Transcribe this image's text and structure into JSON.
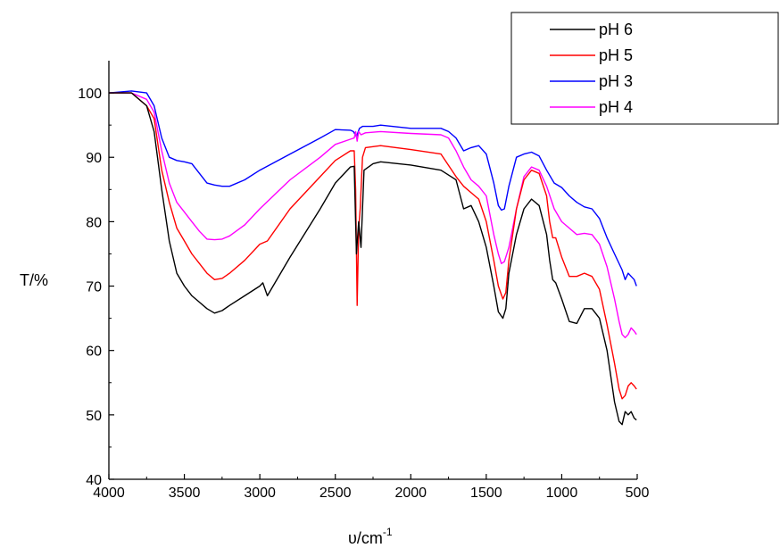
{
  "chart_data": {
    "type": "line",
    "xlabel": "υ/cm",
    "xlabel_sup": "-1",
    "ylabel": "T/%",
    "xlim": [
      4000,
      500
    ],
    "ylim": [
      40,
      105
    ],
    "x_ticks": [
      4000,
      3500,
      3000,
      2500,
      2000,
      1500,
      1000,
      500
    ],
    "x_tick_labels": [
      "4000",
      "3500",
      "3000",
      "2500",
      "2000",
      "1500",
      "1000",
      "500"
    ],
    "y_ticks": [
      40,
      50,
      60,
      70,
      80,
      90,
      100
    ],
    "y_tick_labels": [
      "40",
      "50",
      "60",
      "70",
      "80",
      "90",
      "100"
    ],
    "grid": false,
    "legend_position": "top-right",
    "series": [
      {
        "name": "pH 6",
        "color": "#000000",
        "x": [
          4000,
          3850,
          3750,
          3700,
          3650,
          3600,
          3550,
          3500,
          3450,
          3400,
          3350,
          3300,
          3250,
          3200,
          3100,
          3000,
          2980,
          2950,
          2800,
          2600,
          2500,
          2400,
          2375,
          2360,
          2345,
          2330,
          2310,
          2250,
          2200,
          2000,
          1800,
          1700,
          1650,
          1600,
          1550,
          1500,
          1450,
          1420,
          1390,
          1370,
          1350,
          1300,
          1250,
          1200,
          1150,
          1100,
          1080,
          1060,
          1040,
          1000,
          950,
          900,
          850,
          800,
          750,
          700,
          650,
          620,
          600,
          580,
          560,
          540,
          520,
          505
        ],
        "y": [
          100,
          100,
          98,
          94,
          85,
          77,
          72,
          70,
          68.5,
          67.5,
          66.5,
          65.8,
          66.2,
          67,
          68.5,
          70,
          70.5,
          68.5,
          74.5,
          82,
          86,
          88.5,
          88.6,
          75,
          80,
          76,
          88,
          89,
          89.3,
          88.8,
          88,
          86.5,
          82,
          82.5,
          80,
          76,
          70,
          66,
          65,
          66.5,
          72,
          78,
          82,
          83.5,
          82.5,
          78,
          74,
          71,
          70.5,
          68,
          64.5,
          64.2,
          66.5,
          66.5,
          65,
          60,
          52,
          49,
          48.5,
          50.5,
          50,
          50.5,
          49.5,
          49.2
        ]
      },
      {
        "name": "pH 5",
        "color": "#ff0000",
        "x": [
          4000,
          3850,
          3750,
          3700,
          3650,
          3600,
          3550,
          3500,
          3450,
          3400,
          3350,
          3300,
          3250,
          3200,
          3100,
          3000,
          2950,
          2800,
          2600,
          2500,
          2400,
          2375,
          2365,
          2355,
          2345,
          2335,
          2320,
          2300,
          2200,
          2000,
          1800,
          1700,
          1650,
          1600,
          1550,
          1500,
          1450,
          1420,
          1390,
          1370,
          1350,
          1300,
          1250,
          1200,
          1150,
          1100,
          1080,
          1060,
          1040,
          1000,
          950,
          900,
          850,
          800,
          750,
          700,
          650,
          620,
          600,
          580,
          560,
          540,
          520,
          505
        ],
        "y": [
          100,
          100,
          98,
          96,
          88,
          83,
          79,
          77,
          75,
          73.5,
          72,
          71,
          71.2,
          72,
          74,
          76.5,
          77,
          82,
          87,
          89.5,
          91,
          91,
          85,
          67,
          79,
          82,
          90,
          91.5,
          91.8,
          91.2,
          90.5,
          87,
          85.5,
          84.5,
          83.5,
          80,
          74,
          70,
          68,
          69,
          74,
          82,
          86.5,
          88,
          87.5,
          84,
          80,
          77.5,
          77.5,
          74.5,
          71.5,
          71.5,
          72,
          71.5,
          69.5,
          64,
          58,
          54,
          52.5,
          53,
          54.5,
          55,
          54.5,
          54
        ]
      },
      {
        "name": "pH 3",
        "color": "#0000ff",
        "x": [
          4000,
          3850,
          3750,
          3700,
          3650,
          3600,
          3550,
          3500,
          3450,
          3400,
          3350,
          3300,
          3250,
          3200,
          3100,
          3000,
          2800,
          2600,
          2500,
          2400,
          2380,
          2360,
          2340,
          2320,
          2250,
          2200,
          2000,
          1800,
          1750,
          1700,
          1650,
          1600,
          1550,
          1500,
          1450,
          1420,
          1400,
          1380,
          1350,
          1300,
          1250,
          1200,
          1150,
          1100,
          1050,
          1000,
          950,
          900,
          850,
          800,
          750,
          700,
          650,
          600,
          580,
          560,
          540,
          520,
          505
        ],
        "y": [
          100,
          100.3,
          100,
          98,
          93,
          90,
          89.5,
          89.3,
          89,
          87.5,
          86,
          85.7,
          85.5,
          85.5,
          86.5,
          88,
          90.5,
          93,
          94.3,
          94.2,
          94,
          93.2,
          94.5,
          94.8,
          94.8,
          95,
          94.5,
          94.5,
          94,
          93,
          91,
          91.5,
          91.8,
          90.5,
          86,
          82.5,
          81.8,
          82,
          85.5,
          90,
          90.5,
          90.8,
          90.2,
          88,
          86,
          85.3,
          84,
          83,
          82.3,
          82,
          80.5,
          77.5,
          75,
          72.5,
          71,
          72,
          71.5,
          71,
          70
        ]
      },
      {
        "name": "pH 4",
        "color": "#ff00ff",
        "x": [
          4000,
          3850,
          3750,
          3700,
          3650,
          3600,
          3550,
          3500,
          3450,
          3400,
          3350,
          3300,
          3250,
          3200,
          3100,
          3000,
          2800,
          2600,
          2500,
          2400,
          2375,
          2365,
          2355,
          2345,
          2330,
          2300,
          2200,
          2000,
          1800,
          1750,
          1700,
          1650,
          1600,
          1550,
          1500,
          1450,
          1420,
          1400,
          1380,
          1350,
          1300,
          1250,
          1200,
          1150,
          1100,
          1050,
          1000,
          950,
          900,
          850,
          800,
          750,
          700,
          650,
          620,
          600,
          580,
          560,
          540,
          520,
          505
        ],
        "y": [
          100,
          100,
          99,
          97,
          91,
          86,
          83,
          81.5,
          80,
          78.5,
          77.3,
          77.2,
          77.3,
          77.8,
          79.5,
          82,
          86.5,
          90,
          92,
          92.8,
          93,
          94,
          92.5,
          94,
          93.5,
          93.8,
          94,
          93.7,
          93.5,
          93,
          91,
          88.5,
          86.5,
          85.5,
          84,
          78,
          75,
          73.5,
          73.8,
          76,
          82,
          87,
          88.5,
          88,
          85.5,
          82,
          80,
          79,
          78,
          78.2,
          78,
          76.5,
          73,
          68,
          64.5,
          62.5,
          62,
          62.5,
          63.5,
          63,
          62.5
        ]
      }
    ]
  }
}
